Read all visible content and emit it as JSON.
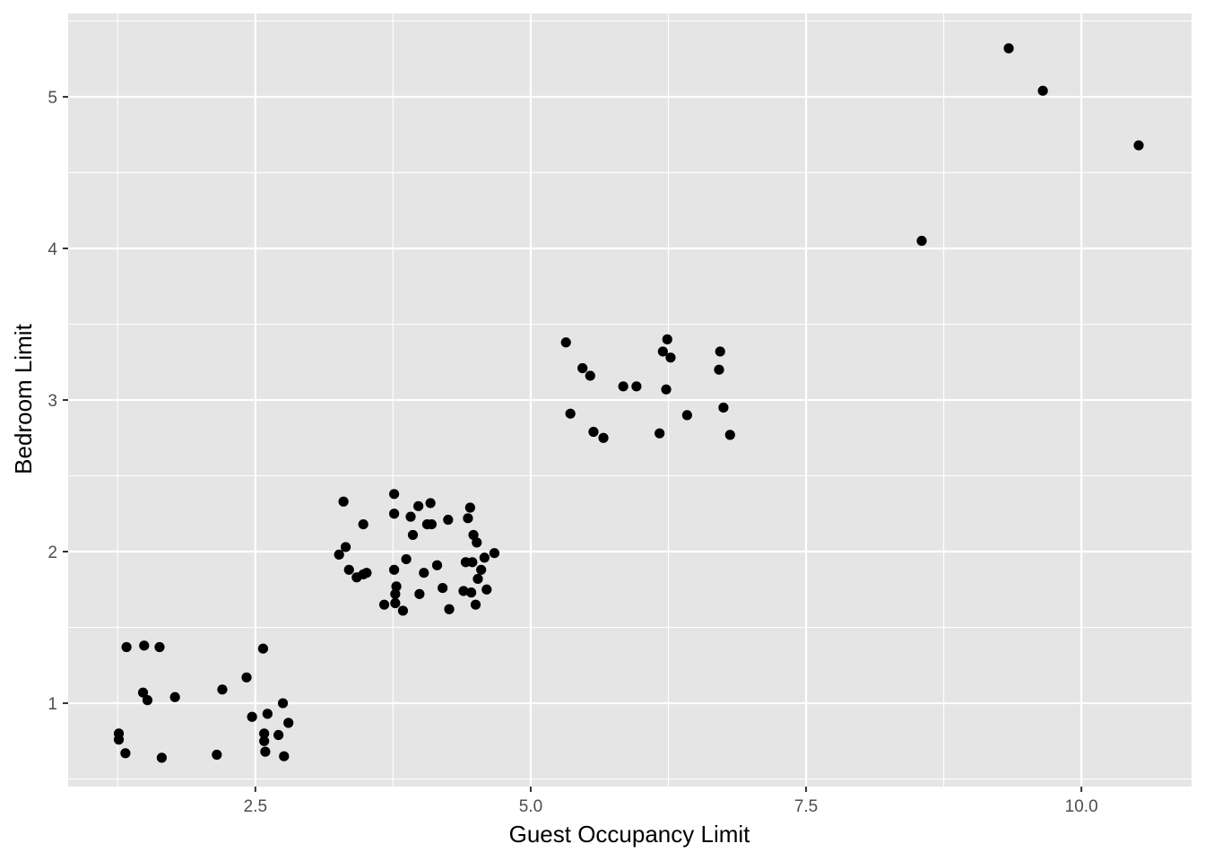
{
  "chart_data": {
    "type": "scatter",
    "title": "",
    "xlabel": "Guest Occupancy Limit",
    "ylabel": "Bedroom Limit",
    "xlim": [
      0.8,
      11.0
    ],
    "ylim": [
      0.45,
      5.55
    ],
    "x_ticks": [
      2.5,
      5.0,
      7.5,
      10.0
    ],
    "x_tick_labels": [
      "2.5",
      "5.0",
      "7.5",
      "10.0"
    ],
    "y_ticks": [
      1,
      2,
      3,
      4,
      5
    ],
    "y_tick_labels": [
      "1",
      "2",
      "3",
      "4",
      "5"
    ],
    "grid": true,
    "legend": "none",
    "colors": {
      "panel": "#e5e5e5",
      "grid": "#ffffff",
      "point": "#000000",
      "tick_text": "#4d4d4d",
      "axis_title": "#000000"
    },
    "points": [
      [
        1.26,
        0.8
      ],
      [
        1.26,
        0.76
      ],
      [
        1.32,
        0.67
      ],
      [
        1.33,
        1.37
      ],
      [
        1.48,
        1.07
      ],
      [
        1.49,
        1.38
      ],
      [
        1.52,
        1.02
      ],
      [
        1.63,
        1.37
      ],
      [
        1.65,
        0.64
      ],
      [
        1.77,
        1.04
      ],
      [
        2.15,
        0.66
      ],
      [
        2.2,
        1.09
      ],
      [
        2.42,
        1.17
      ],
      [
        2.47,
        0.91
      ],
      [
        2.57,
        1.36
      ],
      [
        2.58,
        0.8
      ],
      [
        2.58,
        0.75
      ],
      [
        2.59,
        0.68
      ],
      [
        2.61,
        0.93
      ],
      [
        2.71,
        0.79
      ],
      [
        2.75,
        1.0
      ],
      [
        2.76,
        0.65
      ],
      [
        2.8,
        0.87
      ],
      [
        3.26,
        1.98
      ],
      [
        3.3,
        2.33
      ],
      [
        3.32,
        2.03
      ],
      [
        3.35,
        1.88
      ],
      [
        3.42,
        1.83
      ],
      [
        3.48,
        2.18
      ],
      [
        3.48,
        1.85
      ],
      [
        3.51,
        1.86
      ],
      [
        3.67,
        1.65
      ],
      [
        3.76,
        2.38
      ],
      [
        3.76,
        2.25
      ],
      [
        3.76,
        1.88
      ],
      [
        3.77,
        1.72
      ],
      [
        3.77,
        1.66
      ],
      [
        3.78,
        1.77
      ],
      [
        3.84,
        1.61
      ],
      [
        3.87,
        1.95
      ],
      [
        3.91,
        2.23
      ],
      [
        3.93,
        2.11
      ],
      [
        3.98,
        2.3
      ],
      [
        3.99,
        1.72
      ],
      [
        4.03,
        1.86
      ],
      [
        4.06,
        2.18
      ],
      [
        4.09,
        2.32
      ],
      [
        4.1,
        2.18
      ],
      [
        4.15,
        1.91
      ],
      [
        4.2,
        1.76
      ],
      [
        4.25,
        2.21
      ],
      [
        4.26,
        1.62
      ],
      [
        4.39,
        1.74
      ],
      [
        4.41,
        1.93
      ],
      [
        4.43,
        2.22
      ],
      [
        4.45,
        2.29
      ],
      [
        4.46,
        1.73
      ],
      [
        4.47,
        1.93
      ],
      [
        4.48,
        2.11
      ],
      [
        4.5,
        1.65
      ],
      [
        4.51,
        2.06
      ],
      [
        4.52,
        1.82
      ],
      [
        4.55,
        1.88
      ],
      [
        4.58,
        1.96
      ],
      [
        4.6,
        1.75
      ],
      [
        4.67,
        1.99
      ],
      [
        5.32,
        3.38
      ],
      [
        5.36,
        2.91
      ],
      [
        5.47,
        3.21
      ],
      [
        5.54,
        3.16
      ],
      [
        5.57,
        2.79
      ],
      [
        5.66,
        2.75
      ],
      [
        5.84,
        3.09
      ],
      [
        5.96,
        3.09
      ],
      [
        6.17,
        2.78
      ],
      [
        6.2,
        3.32
      ],
      [
        6.23,
        3.07
      ],
      [
        6.24,
        3.4
      ],
      [
        6.27,
        3.28
      ],
      [
        6.42,
        2.9
      ],
      [
        6.71,
        3.2
      ],
      [
        6.72,
        3.32
      ],
      [
        6.75,
        2.95
      ],
      [
        6.81,
        2.77
      ],
      [
        8.55,
        4.05
      ],
      [
        9.34,
        5.32
      ],
      [
        9.65,
        5.04
      ],
      [
        10.52,
        4.68
      ]
    ]
  }
}
